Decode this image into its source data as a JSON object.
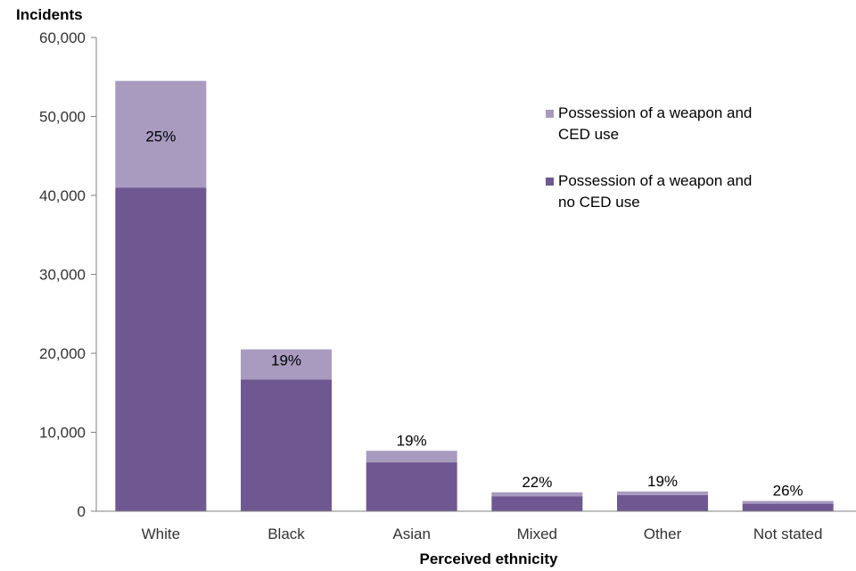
{
  "chart_data": {
    "type": "bar",
    "stacked": true,
    "title": "",
    "ylabel": "Incidents",
    "xlabel": "Perceived ethnicity",
    "ylim": [
      0,
      60000
    ],
    "yticks": [
      0,
      10000,
      20000,
      30000,
      40000,
      50000,
      60000
    ],
    "ytick_labels": [
      "0",
      "10,000",
      "20,000",
      "30,000",
      "40,000",
      "50,000",
      "60,000"
    ],
    "categories": [
      "White",
      "Black",
      "Asian",
      "Mixed",
      "Other",
      "Not stated"
    ],
    "series": [
      {
        "name": "Possession of a weapon and no CED use",
        "color": "#6f5891",
        "values": [
          41000,
          16700,
          6200,
          1900,
          2050,
          950
        ]
      },
      {
        "name": "Possession of a weapon and CED use",
        "color": "#a89bbf",
        "values": [
          13500,
          3800,
          1450,
          500,
          450,
          350
        ]
      }
    ],
    "data_labels": [
      "25%",
      "19%",
      "19%",
      "22%",
      "19%",
      "26%"
    ],
    "legend": {
      "placement": "top-right",
      "entries": [
        {
          "line1": "Possession of a weapon and",
          "line2": "CED use",
          "series": 1
        },
        {
          "line1": "Possession of a weapon and",
          "line2": "no CED use",
          "series": 0
        }
      ]
    },
    "grid": false
  }
}
